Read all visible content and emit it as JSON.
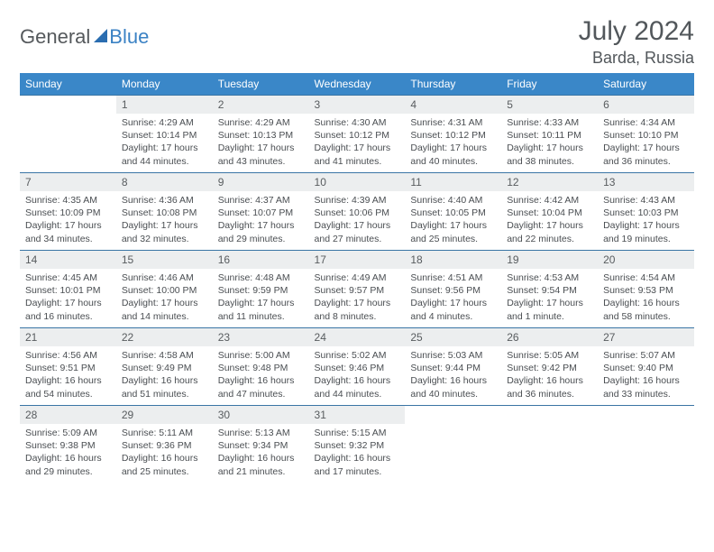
{
  "brand": {
    "part1": "General",
    "part2": "Blue"
  },
  "title": "July 2024",
  "location": "Barda, Russia",
  "colors": {
    "header_bg": "#3a87c8",
    "header_text": "#ffffff",
    "daybar_bg": "#eceeef",
    "rule": "#3a75a5",
    "body_text": "#4a4e52",
    "title_text": "#52575b"
  },
  "weekdays": [
    "Sunday",
    "Monday",
    "Tuesday",
    "Wednesday",
    "Thursday",
    "Friday",
    "Saturday"
  ],
  "weeks": [
    [
      null,
      {
        "n": "1",
        "sr": "4:29 AM",
        "ss": "10:14 PM",
        "dl": "17 hours and 44 minutes."
      },
      {
        "n": "2",
        "sr": "4:29 AM",
        "ss": "10:13 PM",
        "dl": "17 hours and 43 minutes."
      },
      {
        "n": "3",
        "sr": "4:30 AM",
        "ss": "10:12 PM",
        "dl": "17 hours and 41 minutes."
      },
      {
        "n": "4",
        "sr": "4:31 AM",
        "ss": "10:12 PM",
        "dl": "17 hours and 40 minutes."
      },
      {
        "n": "5",
        "sr": "4:33 AM",
        "ss": "10:11 PM",
        "dl": "17 hours and 38 minutes."
      },
      {
        "n": "6",
        "sr": "4:34 AM",
        "ss": "10:10 PM",
        "dl": "17 hours and 36 minutes."
      }
    ],
    [
      {
        "n": "7",
        "sr": "4:35 AM",
        "ss": "10:09 PM",
        "dl": "17 hours and 34 minutes."
      },
      {
        "n": "8",
        "sr": "4:36 AM",
        "ss": "10:08 PM",
        "dl": "17 hours and 32 minutes."
      },
      {
        "n": "9",
        "sr": "4:37 AM",
        "ss": "10:07 PM",
        "dl": "17 hours and 29 minutes."
      },
      {
        "n": "10",
        "sr": "4:39 AM",
        "ss": "10:06 PM",
        "dl": "17 hours and 27 minutes."
      },
      {
        "n": "11",
        "sr": "4:40 AM",
        "ss": "10:05 PM",
        "dl": "17 hours and 25 minutes."
      },
      {
        "n": "12",
        "sr": "4:42 AM",
        "ss": "10:04 PM",
        "dl": "17 hours and 22 minutes."
      },
      {
        "n": "13",
        "sr": "4:43 AM",
        "ss": "10:03 PM",
        "dl": "17 hours and 19 minutes."
      }
    ],
    [
      {
        "n": "14",
        "sr": "4:45 AM",
        "ss": "10:01 PM",
        "dl": "17 hours and 16 minutes."
      },
      {
        "n": "15",
        "sr": "4:46 AM",
        "ss": "10:00 PM",
        "dl": "17 hours and 14 minutes."
      },
      {
        "n": "16",
        "sr": "4:48 AM",
        "ss": "9:59 PM",
        "dl": "17 hours and 11 minutes."
      },
      {
        "n": "17",
        "sr": "4:49 AM",
        "ss": "9:57 PM",
        "dl": "17 hours and 8 minutes."
      },
      {
        "n": "18",
        "sr": "4:51 AM",
        "ss": "9:56 PM",
        "dl": "17 hours and 4 minutes."
      },
      {
        "n": "19",
        "sr": "4:53 AM",
        "ss": "9:54 PM",
        "dl": "17 hours and 1 minute."
      },
      {
        "n": "20",
        "sr": "4:54 AM",
        "ss": "9:53 PM",
        "dl": "16 hours and 58 minutes."
      }
    ],
    [
      {
        "n": "21",
        "sr": "4:56 AM",
        "ss": "9:51 PM",
        "dl": "16 hours and 54 minutes."
      },
      {
        "n": "22",
        "sr": "4:58 AM",
        "ss": "9:49 PM",
        "dl": "16 hours and 51 minutes."
      },
      {
        "n": "23",
        "sr": "5:00 AM",
        "ss": "9:48 PM",
        "dl": "16 hours and 47 minutes."
      },
      {
        "n": "24",
        "sr": "5:02 AM",
        "ss": "9:46 PM",
        "dl": "16 hours and 44 minutes."
      },
      {
        "n": "25",
        "sr": "5:03 AM",
        "ss": "9:44 PM",
        "dl": "16 hours and 40 minutes."
      },
      {
        "n": "26",
        "sr": "5:05 AM",
        "ss": "9:42 PM",
        "dl": "16 hours and 36 minutes."
      },
      {
        "n": "27",
        "sr": "5:07 AM",
        "ss": "9:40 PM",
        "dl": "16 hours and 33 minutes."
      }
    ],
    [
      {
        "n": "28",
        "sr": "5:09 AM",
        "ss": "9:38 PM",
        "dl": "16 hours and 29 minutes."
      },
      {
        "n": "29",
        "sr": "5:11 AM",
        "ss": "9:36 PM",
        "dl": "16 hours and 25 minutes."
      },
      {
        "n": "30",
        "sr": "5:13 AM",
        "ss": "9:34 PM",
        "dl": "16 hours and 21 minutes."
      },
      {
        "n": "31",
        "sr": "5:15 AM",
        "ss": "9:32 PM",
        "dl": "16 hours and 17 minutes."
      },
      null,
      null,
      null
    ]
  ],
  "labels": {
    "sunrise": "Sunrise: ",
    "sunset": "Sunset: ",
    "daylight": "Daylight: "
  }
}
